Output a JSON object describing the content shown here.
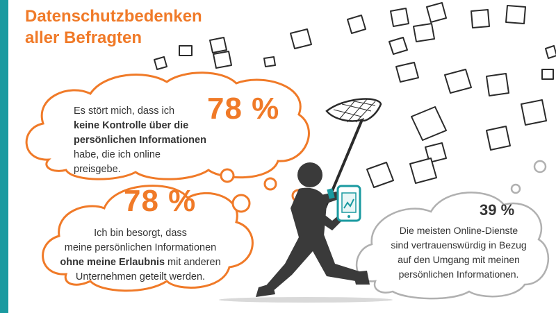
{
  "title": {
    "line1": "Datenschutzbedenken",
    "line2": "aller Befragten"
  },
  "statements": [
    {
      "percent": "78 %",
      "line1": "Es stört mich, dass ich",
      "line2_bold": "keine Kontrolle über die",
      "line3_bold": "persönlichen Informationen",
      "line4": "habe, die ich online",
      "line5": "preisgebe."
    },
    {
      "percent": "78 %",
      "line1": "Ich bin besorgt, dass",
      "line2": "meine persönlichen Informationen",
      "line3_bold": "ohne meine Erlaubnis",
      "line3_rest": " mit anderen",
      "line4": "Unternehmen geteilt werden."
    },
    {
      "percent": "39 %",
      "line1": "Die meisten Online-Dienste",
      "line2": "sind vertrauenswürdig in Bezug",
      "line3": "auf den Umgang mit meinen",
      "line4": "persönlichen Informationen."
    }
  ],
  "colors": {
    "accent": "#f07a28",
    "teal": "#1a9aa0",
    "figure": "#3a3a3a",
    "grey_outline": "#b0b0b0"
  },
  "icons": [
    "person-with-net-icon",
    "smartphone-icon",
    "flying-paper-icon"
  ]
}
